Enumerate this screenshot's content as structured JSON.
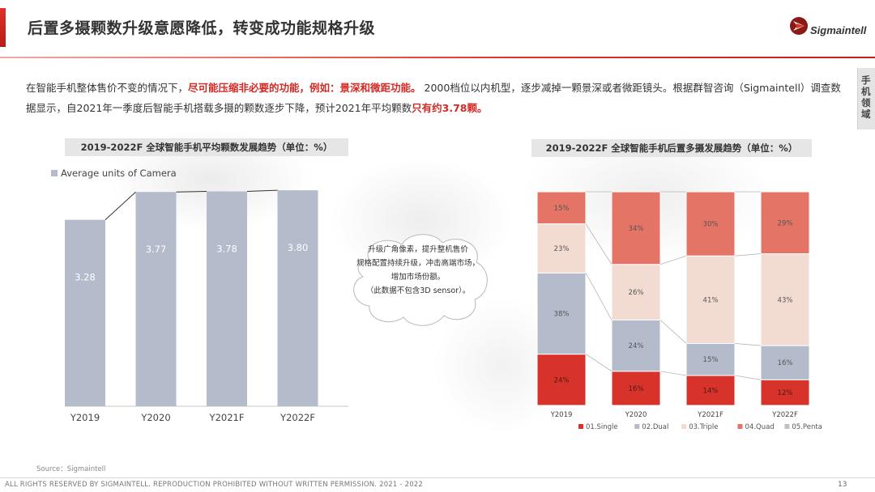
{
  "header": {
    "title": "后置多摄颗数升级意愿降低，转变成功能规格升级",
    "logo_text": "Sigmaintell",
    "side_tab": "手机领域"
  },
  "intro": {
    "part1": "在智能手机整体售价不变的情况下，",
    "part2": "尽可能压缩非必要的功能，例如：景深和微距功能。",
    "part3": " 2000档位以内机型，逐步减掉一颗景深或者微距镜头。根据群智咨询（Sigmaintell）调查数据显示，自2021年一季度后智能手机搭载多摄的颗数逐步下降，预计2021年平均颗数",
    "part4": "只有约3.78颗。"
  },
  "left_chart": {
    "title": "2019-2022F 全球智能手机平均颗数发展趋势（单位：%）",
    "legend": "Average units of Camera",
    "color": "#b4bccb"
  },
  "right_chart": {
    "title": "2019-2022F 全球智能手机后置多摄发展趋势（单位：%）",
    "colors": [
      "#d8332a",
      "#b4bccb",
      "#f2dcd2",
      "#e47466",
      "#c0c0c0"
    ]
  },
  "callout": {
    "lines": [
      "升级广角像素，提升整机售价",
      "规格配置持续升级，冲击高端市场，",
      "增加市场份额。",
      "（此数据不包含3D sensor）。"
    ]
  },
  "chart_data": [
    {
      "type": "bar",
      "title": "2019-2022F 全球智能手机平均颗数发展趋势（单位：%）",
      "categories": [
        "Y2019",
        "Y2020",
        "Y2021F",
        "Y2022F"
      ],
      "series": [
        {
          "name": "Average units of Camera",
          "values": [
            3.28,
            3.77,
            3.78,
            3.8
          ]
        }
      ],
      "ylim": [
        0,
        4.3
      ],
      "legend": "top-left",
      "grid": false
    },
    {
      "type": "bar",
      "stacked": "percent",
      "title": "2019-2022F 全球智能手机后置多摄发展趋势（单位：%）",
      "categories": [
        "Y2019",
        "Y2020",
        "Y2021F",
        "Y2022F"
      ],
      "series": [
        {
          "name": "01.Single",
          "values": [
            24,
            16,
            14,
            12
          ]
        },
        {
          "name": "02.Dual",
          "values": [
            38,
            24,
            15,
            16
          ]
        },
        {
          "name": "03.Triple",
          "values": [
            23,
            26,
            41,
            43
          ]
        },
        {
          "name": "04.Quad",
          "values": [
            15,
            34,
            30,
            29
          ]
        },
        {
          "name": "05.Penta",
          "values": [
            0,
            0,
            0,
            0
          ]
        }
      ],
      "ylim": [
        0,
        100
      ],
      "legend": "bottom",
      "grid": false
    }
  ],
  "footer": {
    "source": "Source：Sigmaintell",
    "rights": "ALL RIGHTS RESERVED BY SIGMAINTELL. REPRODUCTION PROHIBITED WITHOUT WRITTEN PERMISSION. 2021 - 2022",
    "page": "13"
  }
}
